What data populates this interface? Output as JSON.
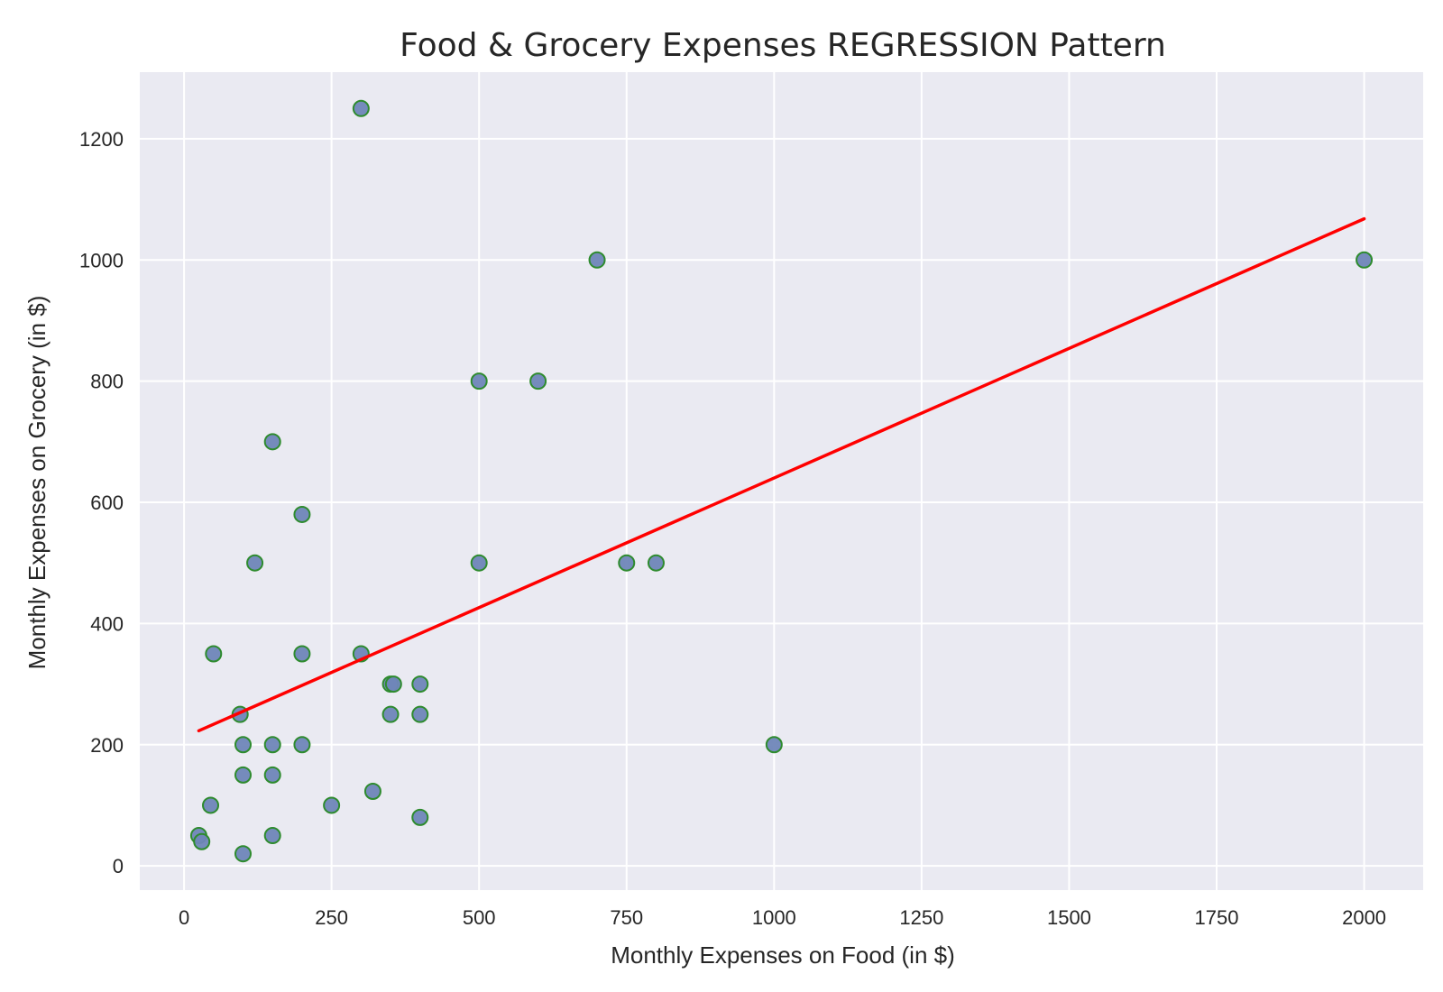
{
  "chart_data": {
    "type": "scatter",
    "title": "Food & Grocery Expenses REGRESSION Pattern",
    "xlabel": "Monthly Expenses on Food (in $)",
    "ylabel": "Monthly Expenses on Grocery (in $)",
    "xlim": [
      -75,
      2100
    ],
    "ylim": [
      -40,
      1310
    ],
    "xticks": [
      0,
      250,
      500,
      750,
      1000,
      1250,
      1500,
      1750,
      2000
    ],
    "yticks": [
      0,
      200,
      400,
      600,
      800,
      1000,
      1200
    ],
    "grid": true,
    "colors": {
      "background": "#eaeaf2",
      "grid": "#ffffff",
      "point_fill": "#6f86b8",
      "point_edge": "#2e8b2e",
      "regression_line": "#ff0000"
    },
    "points": [
      {
        "x": 300,
        "y": 1250
      },
      {
        "x": 700,
        "y": 1000
      },
      {
        "x": 2000,
        "y": 1000
      },
      {
        "x": 500,
        "y": 800
      },
      {
        "x": 600,
        "y": 800
      },
      {
        "x": 150,
        "y": 700
      },
      {
        "x": 200,
        "y": 580
      },
      {
        "x": 120,
        "y": 500
      },
      {
        "x": 500,
        "y": 500
      },
      {
        "x": 750,
        "y": 500
      },
      {
        "x": 800,
        "y": 500
      },
      {
        "x": 50,
        "y": 350
      },
      {
        "x": 200,
        "y": 350
      },
      {
        "x": 300,
        "y": 350
      },
      {
        "x": 350,
        "y": 300
      },
      {
        "x": 355,
        "y": 300
      },
      {
        "x": 400,
        "y": 300
      },
      {
        "x": 95,
        "y": 250
      },
      {
        "x": 350,
        "y": 250
      },
      {
        "x": 400,
        "y": 250
      },
      {
        "x": 100,
        "y": 200
      },
      {
        "x": 150,
        "y": 200
      },
      {
        "x": 200,
        "y": 200
      },
      {
        "x": 1000,
        "y": 200
      },
      {
        "x": 100,
        "y": 150
      },
      {
        "x": 150,
        "y": 150
      },
      {
        "x": 320,
        "y": 123
      },
      {
        "x": 45,
        "y": 100
      },
      {
        "x": 250,
        "y": 100
      },
      {
        "x": 400,
        "y": 80
      },
      {
        "x": 25,
        "y": 50
      },
      {
        "x": 30,
        "y": 40
      },
      {
        "x": 150,
        "y": 50
      },
      {
        "x": 100,
        "y": 20
      }
    ],
    "regression_line": {
      "x": [
        25,
        2000
      ],
      "y": [
        223,
        1068
      ]
    }
  }
}
